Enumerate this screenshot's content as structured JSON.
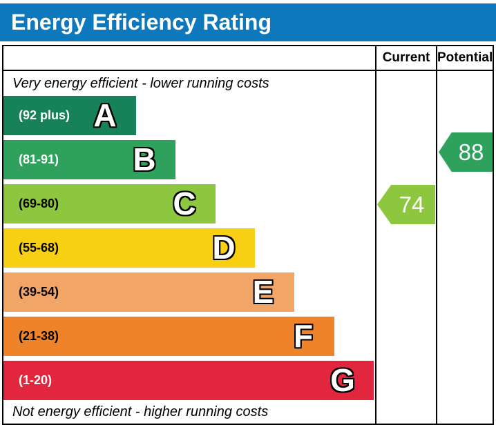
{
  "title": "Energy Efficiency Rating",
  "header_color": "#0e78bd",
  "columns": {
    "current_label": "Current",
    "potential_label": "Potential"
  },
  "captions": {
    "top": "Very energy efficient - lower running costs",
    "bottom": "Not energy efficient - higher running costs"
  },
  "bands": [
    {
      "letter": "A",
      "range": "(92 plus)",
      "color": "#17815a",
      "text_color": "#ffffff"
    },
    {
      "letter": "B",
      "range": "(81-91)",
      "color": "#2ea25c",
      "text_color": "#ffffff"
    },
    {
      "letter": "C",
      "range": "(69-80)",
      "color": "#8dc63f",
      "text_color": "#000000"
    },
    {
      "letter": "D",
      "range": "(55-68)",
      "color": "#f8d013",
      "text_color": "#000000"
    },
    {
      "letter": "E",
      "range": "(39-54)",
      "color": "#f1a566",
      "text_color": "#000000"
    },
    {
      "letter": "F",
      "range": "(21-38)",
      "color": "#ee8329",
      "text_color": "#000000"
    },
    {
      "letter": "G",
      "range": "(1-20)",
      "color": "#e2263d",
      "text_color": "#ffffff"
    }
  ],
  "ratings": {
    "current": {
      "value": "74",
      "band": "C",
      "color": "#8dc63f"
    },
    "potential": {
      "value": "88",
      "band": "B",
      "color": "#2ea25c"
    }
  },
  "chart_data": {
    "type": "bar",
    "title": "Energy Efficiency Rating",
    "categories": [
      "A (92 plus)",
      "B (81-91)",
      "C (69-80)",
      "D (55-68)",
      "E (39-54)",
      "F (21-38)",
      "G (1-20)"
    ],
    "scale_range": [
      1,
      100
    ],
    "series": [
      {
        "name": "Current",
        "value": 74,
        "band": "C"
      },
      {
        "name": "Potential",
        "value": 88,
        "band": "B"
      }
    ],
    "annotations": [
      "Very energy efficient - lower running costs",
      "Not energy efficient - higher running costs"
    ],
    "legend_position": "top-right-columns",
    "grid": false
  }
}
